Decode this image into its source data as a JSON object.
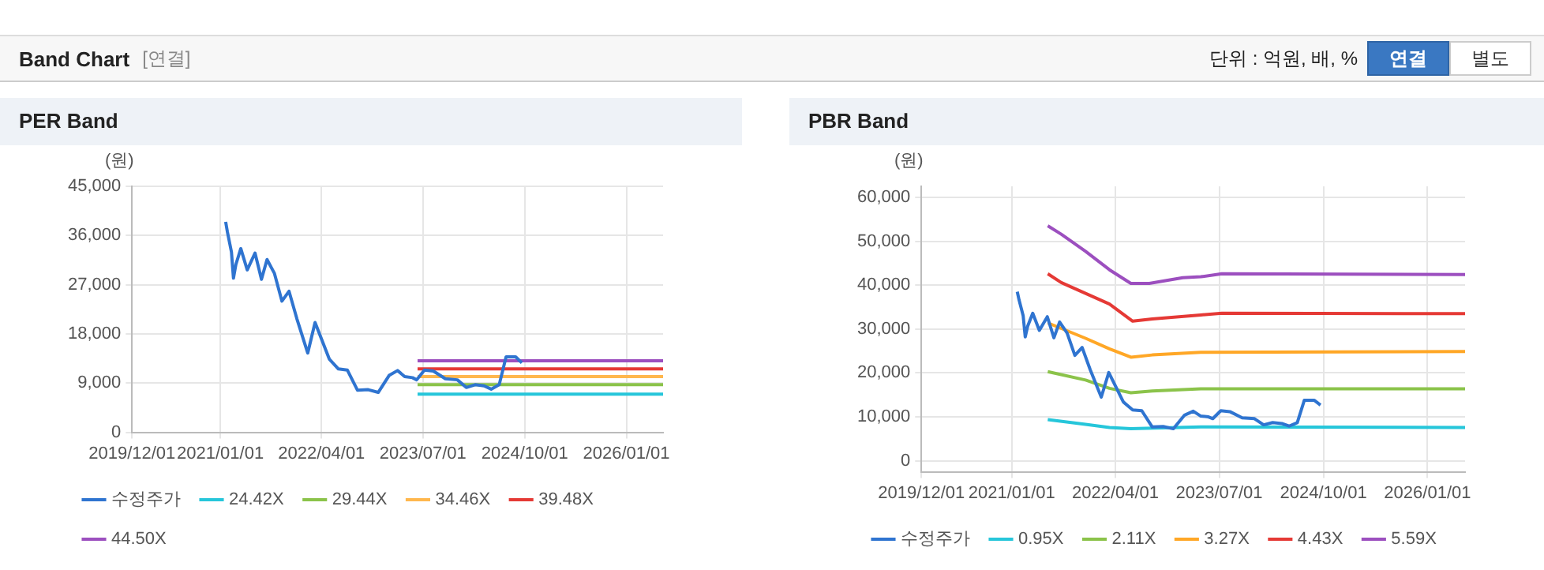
{
  "chart_data": [
    {
      "type": "line",
      "title": "PER Band",
      "ylabel": "(원)",
      "annotations": [
        "Band Chart",
        "[연결]",
        "단위 : 억원, 배, %",
        "연결",
        "별도"
      ],
      "xlim": [
        "2019-12-01",
        "2026-06-15"
      ],
      "xticks": [
        {
          "value": "2019-12-01",
          "label": "2019/12/01"
        },
        {
          "value": "2021-01-01",
          "label": "2021/01/01"
        },
        {
          "value": "2022-04-01",
          "label": "2022/04/01"
        },
        {
          "value": "2023-07-01",
          "label": "2023/07/01"
        },
        {
          "value": "2024-10-01",
          "label": "2024/10/01"
        },
        {
          "value": "2026-01-01",
          "label": "2026/01/01"
        }
      ],
      "ylim": [
        0,
        45000
      ],
      "yticks": [
        0,
        {
          "value": 9000,
          "label": "9,000"
        },
        {
          "value": 18000,
          "label": "18,000"
        },
        {
          "value": 27000,
          "label": "27,000"
        },
        {
          "value": 36000,
          "label": "36,000"
        },
        {
          "value": 45000,
          "label": "45,000"
        }
      ],
      "grid": true,
      "legend": "bottom",
      "series": [
        {
          "name": "수정주가",
          "color": "#2f74d0",
          "x": [
            "2021-01-25",
            "2021-02-02",
            "2021-02-20",
            "2021-03-01",
            "2021-03-12",
            "2021-04-03",
            "2021-05-02",
            "2021-06-06",
            "2021-07-05",
            "2021-07-30",
            "2021-09-01",
            "2021-10-05",
            "2021-11-06",
            "2021-12-11",
            "2022-01-29",
            "2022-03-03",
            "2022-05-06",
            "2022-06-16",
            "2022-07-26",
            "2022-09-10",
            "2022-10-28",
            "2022-12-12",
            "2023-01-30",
            "2023-03-09",
            "2023-04-10",
            "2023-05-15",
            "2023-06-03",
            "2023-07-08",
            "2023-08-17",
            "2023-10-10",
            "2023-12-03",
            "2024-01-12",
            "2024-02-21",
            "2024-04-01",
            "2024-05-03",
            "2024-06-08",
            "2024-07-09",
            "2024-08-21",
            "2024-09-18"
          ],
          "values": [
            38500,
            36600,
            33000,
            28200,
            30700,
            33600,
            29700,
            32800,
            28000,
            31600,
            29100,
            24000,
            25800,
            20800,
            14500,
            20100,
            13400,
            11600,
            11400,
            7700,
            7800,
            7300,
            10400,
            11300,
            10200,
            10000,
            9600,
            11400,
            11200,
            9800,
            9600,
            8200,
            8700,
            8500,
            7900,
            8700,
            13800,
            13800,
            12700
          ]
        },
        {
          "name": "24.42X",
          "color": "#26c6da",
          "x": [
            "2023-06-07",
            "2026-06-15"
          ],
          "values": [
            7000,
            7000
          ]
        },
        {
          "name": "29.44X",
          "color": "#8bc34a",
          "x": [
            "2023-06-07",
            "2026-06-15"
          ],
          "values": [
            8700,
            8700
          ]
        },
        {
          "name": "34.46X",
          "color": "#ffb74d",
          "x": [
            "2023-06-07",
            "2026-06-15"
          ],
          "values": [
            10200,
            10200
          ]
        },
        {
          "name": "39.48X",
          "color": "#e53935",
          "x": [
            "2023-06-07",
            "2026-06-15"
          ],
          "values": [
            11600,
            11600
          ]
        },
        {
          "name": "44.50X",
          "color": "#9c4fbf",
          "x": [
            "2023-06-07",
            "2026-06-15"
          ],
          "values": [
            13100,
            13100
          ]
        }
      ]
    },
    {
      "type": "line",
      "title": "PBR Band",
      "ylabel": "(원)",
      "xlim": [
        "2019-12-01",
        "2026-06-15"
      ],
      "xticks": [
        {
          "value": "2019-12-01",
          "label": "2019/12/01"
        },
        {
          "value": "2021-01-01",
          "label": "2021/01/01"
        },
        {
          "value": "2022-04-01",
          "label": "2022/04/01"
        },
        {
          "value": "2023-07-01",
          "label": "2023/07/01"
        },
        {
          "value": "2024-10-01",
          "label": "2024/10/01"
        },
        {
          "value": "2026-01-01",
          "label": "2026/01/01"
        }
      ],
      "ylim": [
        -2500,
        62500
      ],
      "yticks": [
        0,
        {
          "value": 10000,
          "label": "10,000"
        },
        {
          "value": 20000,
          "label": "20,000"
        },
        {
          "value": 30000,
          "label": "30,000"
        },
        {
          "value": 40000,
          "label": "40,000"
        },
        {
          "value": 50000,
          "label": "50,000"
        },
        {
          "value": 60000,
          "label": "60,000"
        }
      ],
      "grid": true,
      "legend": "bottom",
      "series": [
        {
          "name": "수정주가",
          "color": "#2f74d0",
          "x": [
            "2021-01-25",
            "2021-02-02",
            "2021-02-20",
            "2021-03-01",
            "2021-03-12",
            "2021-04-03",
            "2021-05-02",
            "2021-06-06",
            "2021-07-05",
            "2021-07-30",
            "2021-09-01",
            "2021-10-05",
            "2021-11-06",
            "2021-12-11",
            "2022-01-29",
            "2022-03-03",
            "2022-05-06",
            "2022-06-16",
            "2022-07-26",
            "2022-09-10",
            "2022-10-28",
            "2022-12-12",
            "2023-01-30",
            "2023-03-09",
            "2023-04-10",
            "2023-05-15",
            "2023-06-03",
            "2023-07-08",
            "2023-08-17",
            "2023-10-10",
            "2023-12-03",
            "2024-01-12",
            "2024-02-21",
            "2024-04-01",
            "2024-05-03",
            "2024-06-08",
            "2024-07-09",
            "2024-08-21",
            "2024-09-18"
          ],
          "values": [
            38500,
            36600,
            33000,
            28200,
            30700,
            33600,
            29700,
            32800,
            28000,
            31600,
            29100,
            24000,
            25800,
            20800,
            14500,
            20100,
            13400,
            11600,
            11400,
            7700,
            7800,
            7300,
            10400,
            11300,
            10200,
            10000,
            9600,
            11400,
            11200,
            9800,
            9600,
            8200,
            8700,
            8500,
            7900,
            8700,
            13800,
            13800,
            12700
          ]
        },
        {
          "name": "0.95X",
          "color": "#26c6da",
          "x": [
            "2021-06-08",
            "2021-11-21",
            "2022-03-06",
            "2022-06-08",
            "2023-04-11",
            "2026-06-15"
          ],
          "values": [
            9400,
            8300,
            7600,
            7300,
            7700,
            7600
          ]
        },
        {
          "name": "2.11X",
          "color": "#8bc34a",
          "x": [
            "2021-06-08",
            "2021-11-21",
            "2022-03-06",
            "2022-06-08",
            "2022-09-10",
            "2023-04-11",
            "2026-06-15"
          ],
          "values": [
            20300,
            18400,
            16500,
            15500,
            15900,
            16400,
            16400
          ]
        },
        {
          "name": "3.27X",
          "color": "#ffa726",
          "x": [
            "2021-06-08",
            "2021-11-21",
            "2022-03-06",
            "2022-06-08",
            "2022-09-10",
            "2023-04-11",
            "2026-06-15"
          ],
          "values": [
            31400,
            27900,
            25500,
            23600,
            24100,
            24700,
            24900
          ]
        },
        {
          "name": "4.43X",
          "color": "#e53935",
          "x": [
            "2021-06-08",
            "2021-08-06",
            "2022-03-06",
            "2022-06-16",
            "2022-09-10",
            "2023-04-11",
            "2023-07-13",
            "2026-06-15"
          ],
          "values": [
            42600,
            40600,
            35700,
            31800,
            32300,
            33200,
            33600,
            33500
          ]
        },
        {
          "name": "5.59X",
          "color": "#9c4fbf",
          "x": [
            "2021-06-08",
            "2021-08-06",
            "2021-11-21",
            "2022-03-06",
            "2022-06-08",
            "2022-08-28",
            "2023-01-22",
            "2023-04-11",
            "2023-07-13",
            "2026-06-15"
          ],
          "values": [
            53500,
            51600,
            47700,
            43500,
            40400,
            40400,
            41700,
            41900,
            42600,
            42400
          ]
        }
      ]
    }
  ]
}
